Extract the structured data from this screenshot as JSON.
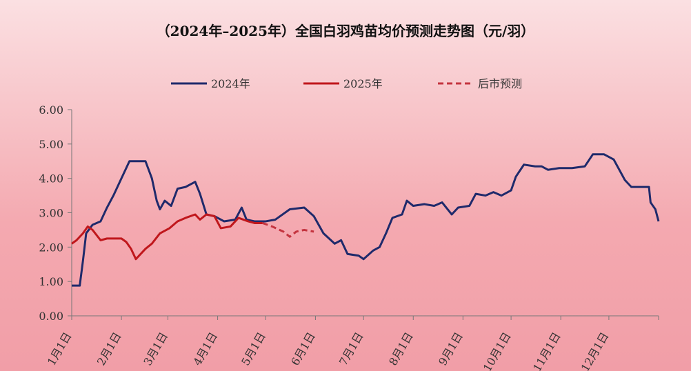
{
  "chart_data": {
    "type": "line",
    "title": "（2024年–2025年）全国白羽鸡苗均价预测走势图（元/羽）",
    "xlim": [
      0,
      366
    ],
    "xticks": [
      {
        "value": 0,
        "label": "1月1日"
      },
      {
        "value": 31,
        "label": "2月1日"
      },
      {
        "value": 60,
        "label": "3月1日"
      },
      {
        "value": 91,
        "label": "4月1日"
      },
      {
        "value": 121,
        "label": "5月1日"
      },
      {
        "value": 152,
        "label": "6月1日"
      },
      {
        "value": 182,
        "label": "7月1日"
      },
      {
        "value": 213,
        "label": "8月1日"
      },
      {
        "value": 244,
        "label": "9月1日"
      },
      {
        "value": 274,
        "label": "10月1日"
      },
      {
        "value": 305,
        "label": "11月1日"
      },
      {
        "value": 335,
        "label": "12月1日"
      }
    ],
    "ylim": [
      0,
      6
    ],
    "yticks": [
      {
        "value": 0,
        "label": "0.00"
      },
      {
        "value": 1,
        "label": "1.00"
      },
      {
        "value": 2,
        "label": "2.00"
      },
      {
        "value": 3,
        "label": "3.00"
      },
      {
        "value": 4,
        "label": "4.00"
      },
      {
        "value": 5,
        "label": "5.00"
      },
      {
        "value": 6,
        "label": "6.00"
      }
    ],
    "series": [
      {
        "name": "2024年",
        "color": "#1f2a6b",
        "linestyle": "solid",
        "x": [
          0,
          5,
          7,
          9,
          13,
          18,
          22,
          26,
          31,
          36,
          46,
          50,
          53,
          55,
          58,
          62,
          66,
          71,
          77,
          80,
          84,
          89,
          95,
          102,
          106,
          109,
          114,
          121,
          127,
          136,
          145,
          151,
          157,
          164,
          168,
          172,
          179,
          182,
          188,
          192,
          196,
          200,
          206,
          209,
          213,
          220,
          226,
          231,
          237,
          241,
          248,
          252,
          258,
          263,
          268,
          274,
          277,
          282,
          289,
          293,
          297,
          304,
          312,
          320,
          325,
          332,
          338,
          345,
          349,
          360,
          361,
          364,
          366
        ],
        "values": [
          0.88,
          0.88,
          1.6,
          2.4,
          2.65,
          2.75,
          3.15,
          3.5,
          4.0,
          4.5,
          4.5,
          4.0,
          3.35,
          3.1,
          3.35,
          3.2,
          3.7,
          3.75,
          3.9,
          3.55,
          2.95,
          2.9,
          2.75,
          2.8,
          3.15,
          2.8,
          2.75,
          2.75,
          2.8,
          3.1,
          3.15,
          2.9,
          2.4,
          2.1,
          2.2,
          1.8,
          1.75,
          1.65,
          1.9,
          2.0,
          2.4,
          2.85,
          2.95,
          3.35,
          3.2,
          3.25,
          3.2,
          3.3,
          2.95,
          3.15,
          3.2,
          3.55,
          3.5,
          3.6,
          3.5,
          3.65,
          4.05,
          4.4,
          4.35,
          4.35,
          4.25,
          4.3,
          4.3,
          4.35,
          4.7,
          4.7,
          4.55,
          3.95,
          3.75,
          3.75,
          3.3,
          3.1,
          2.75
        ]
      },
      {
        "name": "2025年",
        "color": "#c0171c",
        "linestyle": "solid",
        "x": [
          0,
          3,
          7,
          10,
          13,
          18,
          22,
          31,
          34,
          37,
          40,
          46,
          50,
          55,
          61,
          66,
          71,
          77,
          80,
          84,
          89,
          93,
          99,
          104,
          110,
          114,
          119
        ],
        "values": [
          2.1,
          2.2,
          2.4,
          2.6,
          2.5,
          2.2,
          2.25,
          2.25,
          2.15,
          1.95,
          1.65,
          1.95,
          2.1,
          2.4,
          2.55,
          2.75,
          2.85,
          2.95,
          2.8,
          2.95,
          2.9,
          2.55,
          2.6,
          2.85,
          2.75,
          2.7,
          2.7
        ]
      },
      {
        "name": "后市预测",
        "color": "#c4343f",
        "linestyle": "dashed",
        "x": [
          119,
          125,
          132,
          136,
          140,
          145,
          151
        ],
        "values": [
          2.7,
          2.6,
          2.45,
          2.3,
          2.45,
          2.5,
          2.45
        ]
      }
    ]
  }
}
